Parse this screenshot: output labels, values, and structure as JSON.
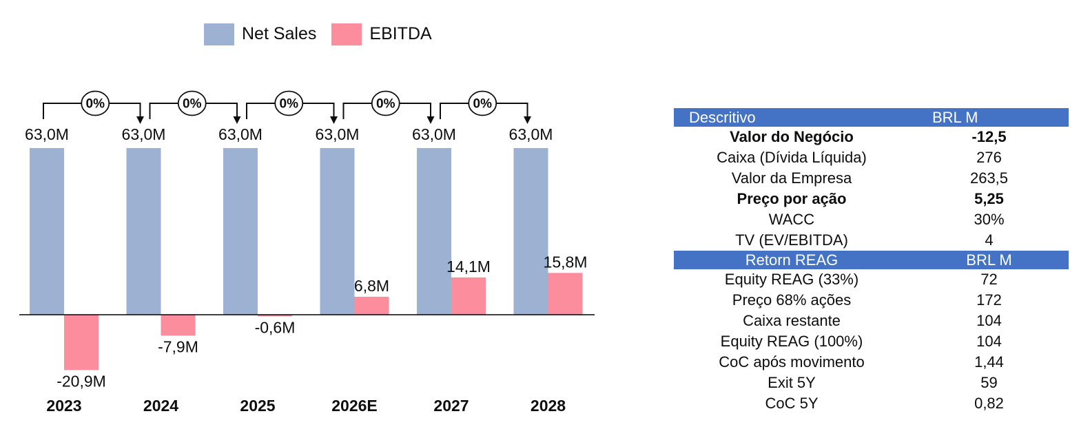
{
  "page": {
    "background": "#ffffff"
  },
  "chart_data": {
    "type": "bar",
    "title": "",
    "xlabel": "",
    "ylabel": "",
    "value_unit": "BRL M",
    "categories": [
      "2023",
      "2024",
      "2025",
      "2026E",
      "2027",
      "2028"
    ],
    "series": [
      {
        "name": "Net Sales",
        "color": "#9db2d2",
        "values": [
          63.0,
          63.0,
          63.0,
          63.0,
          63.0,
          63.0
        ],
        "labels": [
          "63,0M",
          "63,0M",
          "63,0M",
          "63,0M",
          "63,0M",
          "63,0M"
        ]
      },
      {
        "name": "EBITDA",
        "color": "#fc8d9d",
        "values": [
          -20.9,
          -7.9,
          -0.6,
          6.8,
          14.1,
          15.8
        ],
        "labels": [
          "-20,9M",
          "-7,9M",
          "-0,6M",
          "6,8M",
          "14,1M",
          "15,8M"
        ]
      }
    ],
    "growth_annotations": [
      "0%",
      "0%",
      "0%",
      "0%",
      "0%"
    ],
    "ylim": [
      -25,
      70
    ],
    "legend_position": "top",
    "gridlines": false,
    "baseline_axis": "x"
  },
  "table": {
    "accent_color": "#4472c4",
    "sections": [
      {
        "header": {
          "col1": "Descritivo",
          "col2": "BRL M",
          "col1_align": "left",
          "col2_align": "left"
        },
        "rows": [
          {
            "label": "Valor do Negócio",
            "value": "-12,5",
            "bold": true
          },
          {
            "label": "Caixa (Dívida Líquida)",
            "value": "276",
            "bold": false
          },
          {
            "label": "Valor da Empresa",
            "value": "263,5",
            "bold": false
          },
          {
            "label": "Preço por ação",
            "value": "5,25",
            "bold": true
          },
          {
            "label": "WACC",
            "value": "30%",
            "bold": false
          },
          {
            "label": "TV (EV/EBITDA)",
            "value": "4",
            "bold": false
          }
        ]
      },
      {
        "header": {
          "col1": "Retorn REAG",
          "col2": "BRL M",
          "col1_align": "center",
          "col2_align": "center"
        },
        "rows": [
          {
            "label": "Equity REAG (33%)",
            "value": "72",
            "bold": false
          },
          {
            "label": "Preço 68% ações",
            "value": "172",
            "bold": false
          },
          {
            "label": "Caixa restante",
            "value": "104",
            "bold": false
          },
          {
            "label": "Equity REAG (100%)",
            "value": "104",
            "bold": false
          },
          {
            "label": "CoC após movimento",
            "value": "1,44",
            "bold": false
          },
          {
            "label": "Exit 5Y",
            "value": "59",
            "bold": false
          },
          {
            "label": "CoC 5Y",
            "value": "0,82",
            "bold": false
          }
        ]
      }
    ]
  }
}
